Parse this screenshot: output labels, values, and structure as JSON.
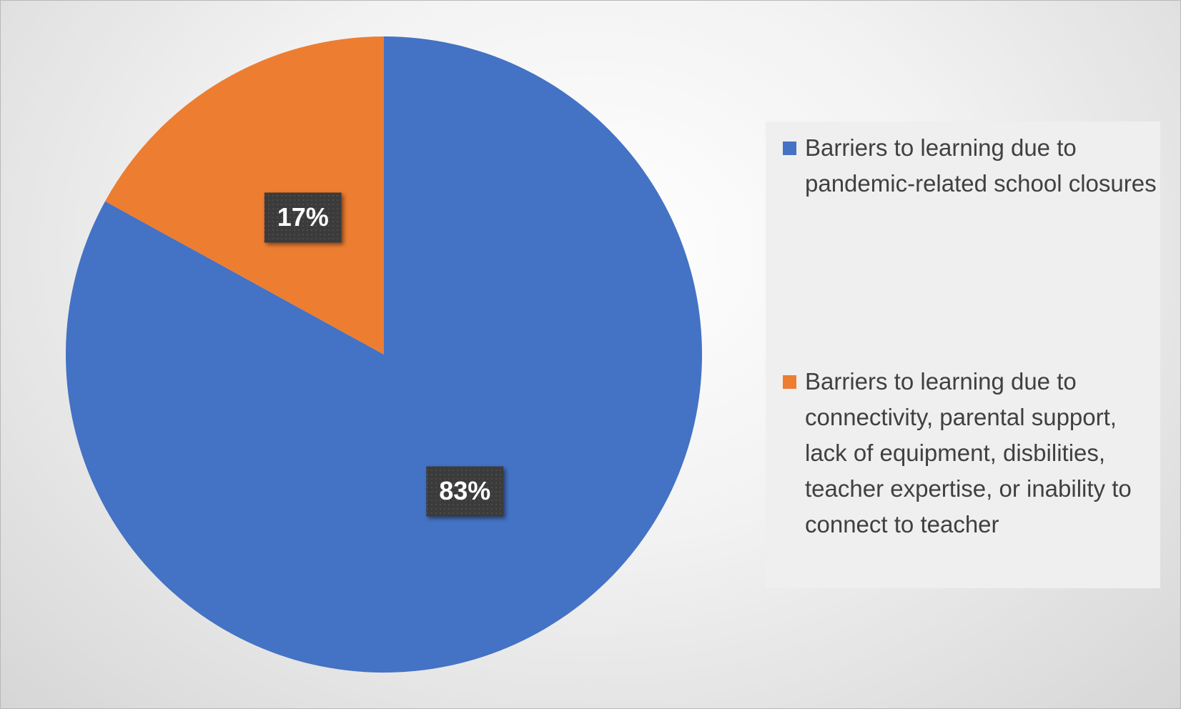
{
  "chart_data": {
    "type": "pie",
    "categories": [
      "Barriers to learning due to pandemic-related school closures",
      "Barriers to learning due to connectivity, parental support, lack of equipment, disbilities, teacher expertise, or inability to connect to teacher"
    ],
    "values": [
      83,
      17
    ],
    "value_labels": [
      "83%",
      "17%"
    ],
    "colors": [
      "#4472c4",
      "#ed7d31"
    ],
    "legend": "right"
  }
}
